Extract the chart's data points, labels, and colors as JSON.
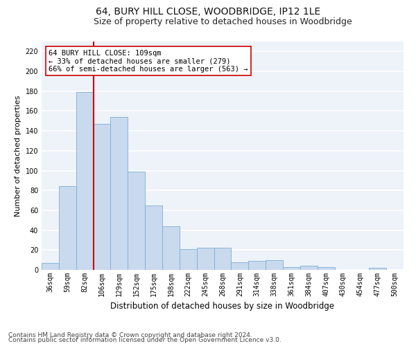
{
  "title1": "64, BURY HILL CLOSE, WOODBRIDGE, IP12 1LE",
  "title2": "Size of property relative to detached houses in Woodbridge",
  "xlabel": "Distribution of detached houses by size in Woodbridge",
  "ylabel": "Number of detached properties",
  "categories": [
    "36sqm",
    "59sqm",
    "82sqm",
    "106sqm",
    "129sqm",
    "152sqm",
    "175sqm",
    "198sqm",
    "222sqm",
    "245sqm",
    "268sqm",
    "291sqm",
    "314sqm",
    "338sqm",
    "361sqm",
    "384sqm",
    "407sqm",
    "430sqm",
    "454sqm",
    "477sqm",
    "500sqm"
  ],
  "bar_heights": [
    7,
    84,
    179,
    147,
    154,
    99,
    65,
    44,
    21,
    22,
    22,
    8,
    9,
    10,
    3,
    4,
    3,
    0,
    0,
    2,
    0
  ],
  "bar_color": "#c9d9ee",
  "bar_edge_color": "#7bafd4",
  "vline_x": 2.5,
  "vline_color": "#cc0000",
  "annotation_text": "64 BURY HILL CLOSE: 109sqm\n← 33% of detached houses are smaller (279)\n66% of semi-detached houses are larger (563) →",
  "annotation_box_color": "#ffffff",
  "annotation_box_edge": "#cc0000",
  "ylim": [
    0,
    230
  ],
  "yticks": [
    0,
    20,
    40,
    60,
    80,
    100,
    120,
    140,
    160,
    180,
    200,
    220
  ],
  "footnote1": "Contains HM Land Registry data © Crown copyright and database right 2024.",
  "footnote2": "Contains public sector information licensed under the Open Government Licence v3.0.",
  "background_color": "#eef2f9",
  "grid_color": "#ffffff",
  "title1_fontsize": 10,
  "title2_fontsize": 9,
  "xlabel_fontsize": 8.5,
  "ylabel_fontsize": 8,
  "tick_fontsize": 7,
  "annotation_fontsize": 7.5,
  "footnote_fontsize": 6.5
}
